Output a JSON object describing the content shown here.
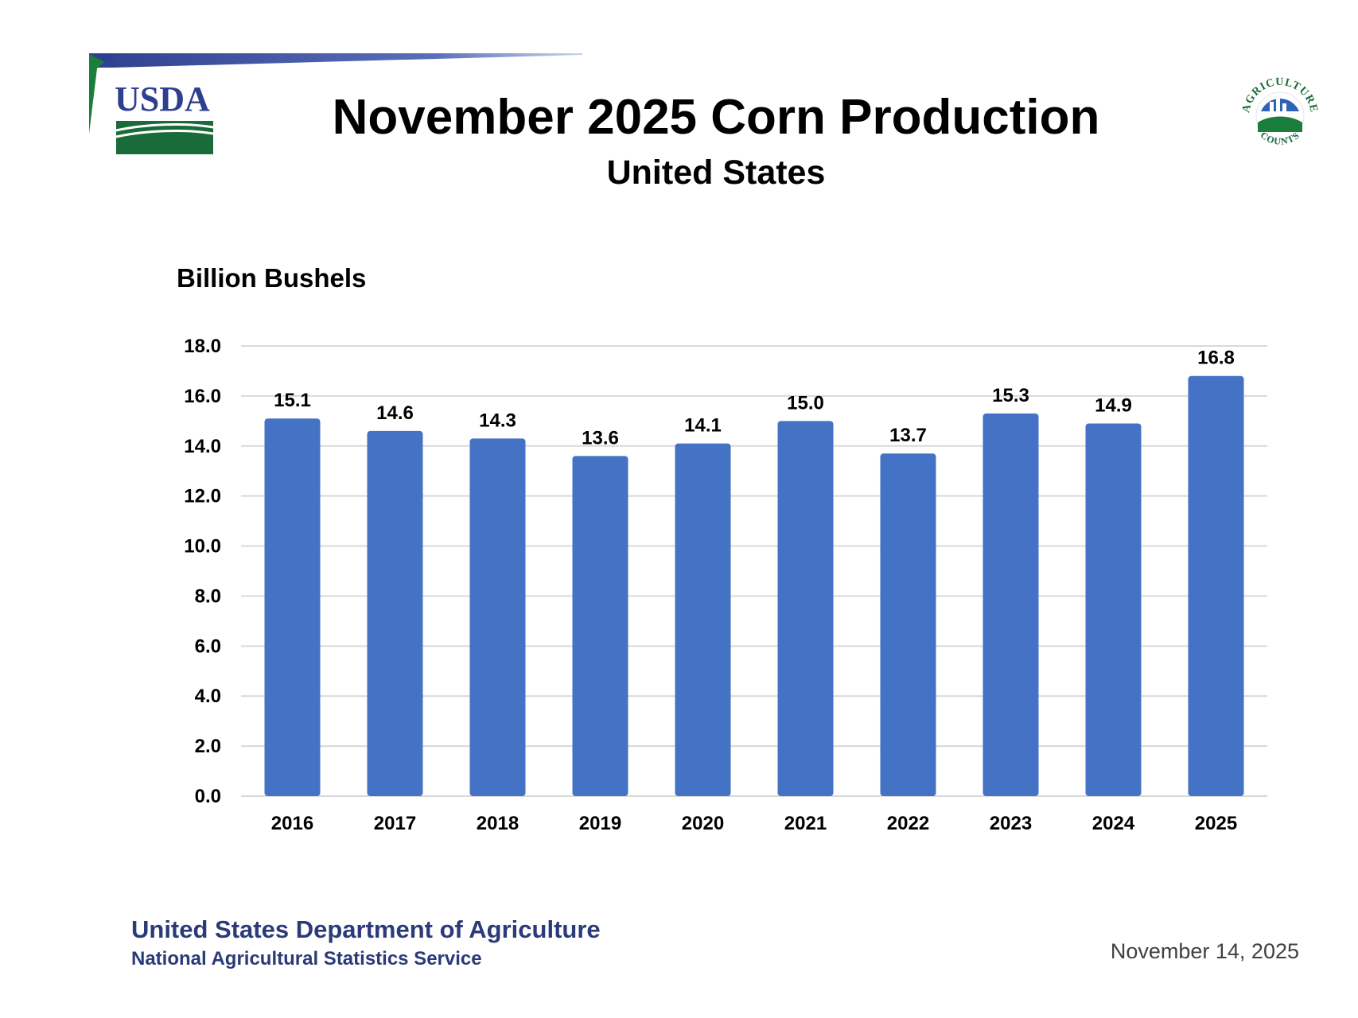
{
  "header": {
    "title": "November 2025 Corn Production",
    "subtitle": "United States",
    "usda_logo_text": "USDA",
    "seal_text_top": "AGRICULTURE",
    "seal_text_bottom": "COUNTS"
  },
  "chart_data": {
    "type": "bar",
    "title": "November 2025 Corn Production",
    "subtitle": "United States",
    "ylabel": "Billion Bushels",
    "xlabel": "",
    "categories": [
      "2016",
      "2017",
      "2018",
      "2019",
      "2020",
      "2021",
      "2022",
      "2023",
      "2024",
      "2025"
    ],
    "values": [
      15.1,
      14.6,
      14.3,
      13.6,
      14.1,
      15.0,
      13.7,
      15.3,
      14.9,
      16.8
    ],
    "data_labels": [
      "15.1",
      "14.6",
      "14.3",
      "13.6",
      "14.1",
      "15.0",
      "13.7",
      "15.3",
      "14.9",
      "16.8"
    ],
    "ylim": [
      0,
      18
    ],
    "yticks": [
      "0.0",
      "2.0",
      "4.0",
      "6.0",
      "8.0",
      "10.0",
      "12.0",
      "14.0",
      "16.0",
      "18.0"
    ],
    "grid": true,
    "legend": "none",
    "bar_color": "#4472c4",
    "grid_color": "#d9d9d9"
  },
  "footer": {
    "agency": "United States Department of Agriculture",
    "service": "National Agricultural Statistics Service",
    "date": "November 14, 2025"
  }
}
